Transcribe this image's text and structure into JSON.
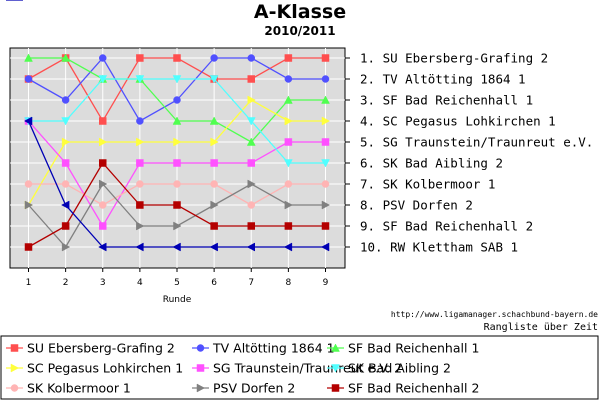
{
  "chart_data": {
    "type": "line",
    "title": "A-Klasse",
    "subtitle": "2010/2011",
    "xlabel": "Runde",
    "x": [
      1,
      2,
      3,
      4,
      5,
      6,
      7,
      8,
      9
    ],
    "ylim": [
      1,
      10
    ],
    "y_inverted": true,
    "grid": true,
    "legend_position": "bottom",
    "final_ranking": [
      "1. SU Ebersberg-Grafing 2",
      "2. TV Altötting 1864 1",
      "3. SF Bad Reichenhall 1",
      "4. SC Pegasus Lohkirchen 1",
      "5. SG Traunstein/Traunreut e.V. 2",
      "6. SK Bad Aibling 2",
      "7. SK Kolbermoor 1",
      "8. PSV Dorfen 2",
      "9. SF Bad Reichenhall 2",
      "10. RW Klettham SAB 1"
    ],
    "series": [
      {
        "name": "SU Ebersberg-Grafing 2",
        "color": "#ff4f4f",
        "marker": "square",
        "values": [
          2,
          1,
          4,
          1,
          1,
          2,
          2,
          1,
          1
        ]
      },
      {
        "name": "TV Altötting 1864 1",
        "color": "#5050ff",
        "marker": "circle",
        "values": [
          2,
          3,
          1,
          4,
          3,
          1,
          1,
          2,
          2
        ]
      },
      {
        "name": "SF Bad Reichenhall 1",
        "color": "#50ff50",
        "marker": "triangle-up",
        "values": [
          1,
          1,
          2,
          2,
          4,
          4,
          5,
          3,
          3
        ]
      },
      {
        "name": "SC Pegasus Lohkirchen 1",
        "color": "#ffff3c",
        "marker": "triangle-right",
        "values": [
          8,
          5,
          5,
          5,
          5,
          5,
          3,
          4,
          4
        ]
      },
      {
        "name": "SG Traunstein/Traunreut e.V. 2",
        "color": "#ff50ff",
        "marker": "square",
        "values": [
          4,
          6,
          9,
          6,
          6,
          6,
          6,
          5,
          5
        ]
      },
      {
        "name": "SK Bad Aibling 2",
        "color": "#50ffff",
        "marker": "triangle-down",
        "values": [
          4,
          4,
          2,
          2,
          2,
          2,
          4,
          6,
          6
        ]
      },
      {
        "name": "SK Kolbermoor 1",
        "color": "#ffb4b4",
        "marker": "circle",
        "values": [
          7,
          7,
          8,
          7,
          7,
          7,
          8,
          7,
          7
        ]
      },
      {
        "name": "PSV Dorfen 2",
        "color": "#808080",
        "marker": "triangle-right",
        "values": [
          8,
          10,
          7,
          9,
          9,
          8,
          7,
          8,
          8
        ]
      },
      {
        "name": "SF Bad Reichenhall 2",
        "color": "#b40000",
        "marker": "square",
        "values": [
          10,
          9,
          6,
          8,
          8,
          9,
          9,
          9,
          9
        ]
      },
      {
        "name": "RW Klettham SAB 1",
        "color": "#0000b4",
        "marker": "triangle-left",
        "values": [
          4,
          8,
          10,
          10,
          10,
          10,
          10,
          10,
          10
        ]
      }
    ],
    "source_url": "http://www.ligamanager.schachbund-bayern.de",
    "caption": "Rangliste über Zeit"
  }
}
